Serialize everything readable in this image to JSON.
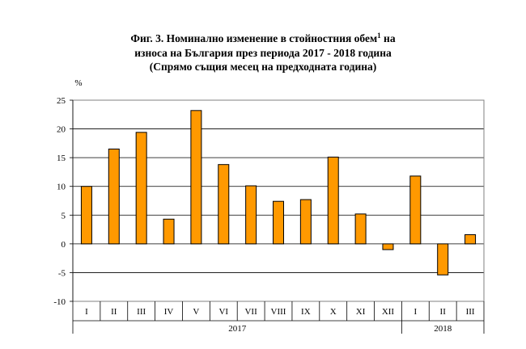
{
  "title": {
    "line1_prefix": "Фиг. 3. Номинално изменение в стойностния обем",
    "line1_sup": "1",
    "line1_suffix": " на",
    "line2": "износа на България през периода 2017 - 2018 година",
    "line3": "(Спрямо същия месец на предходната година)"
  },
  "chart_data": {
    "type": "bar",
    "ylabel": "%",
    "ylim": [
      -10,
      25
    ],
    "yticks": [
      -10,
      -5,
      0,
      5,
      10,
      15,
      20,
      25
    ],
    "grid": true,
    "categories": [
      "I",
      "II",
      "III",
      "IV",
      "V",
      "VI",
      "VII",
      "VIII",
      "IX",
      "X",
      "XI",
      "XII",
      "I",
      "II",
      "III"
    ],
    "values": [
      10.0,
      16.5,
      19.4,
      4.3,
      23.2,
      13.8,
      10.1,
      7.4,
      7.7,
      15.1,
      5.2,
      -1.0,
      11.8,
      -5.4,
      1.6
    ],
    "year_groups": [
      {
        "label": "2017",
        "count": 12
      },
      {
        "label": "2018",
        "count": 3
      }
    ],
    "colors": {
      "bar_fill": "#FF9900",
      "bar_stroke": "#000000",
      "grid": "#000000",
      "frame": "#808080"
    }
  }
}
